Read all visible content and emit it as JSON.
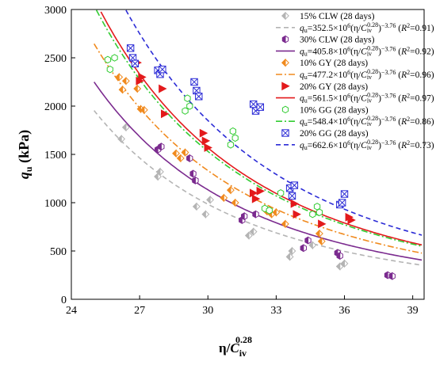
{
  "chart_data": {
    "type": "scatter",
    "title": "",
    "xlabel": {
      "main": "η/",
      "var": "C",
      "sub": "iv",
      "sup": "0.28"
    },
    "ylabel": {
      "main": "q",
      "sub": "u",
      "unit": " (kPa)"
    },
    "xlim": [
      24,
      39.5
    ],
    "ylim": [
      0,
      3000
    ],
    "xticks": [
      24,
      27,
      30,
      33,
      36,
      39
    ],
    "yticks": [
      0,
      500,
      1000,
      1500,
      2000,
      2500,
      3000
    ],
    "grid": false,
    "legend_position": "top-right",
    "series": [
      {
        "name": "15% CLW (28 days)",
        "marker": "diamond-half",
        "color": "#b4b4b4",
        "fit_label": {
          "coef": "352.5",
          "r2": "0.91"
        },
        "fit": {
          "a": 352500000,
          "b": -3.76,
          "x_start": 25
        },
        "fit_style": "dash",
        "points": [
          [
            26.2,
            1660
          ],
          [
            26.4,
            1780
          ],
          [
            27.8,
            1270
          ],
          [
            27.9,
            1320
          ],
          [
            29.5,
            960
          ],
          [
            29.9,
            880
          ],
          [
            30.1,
            1030
          ],
          [
            31.8,
            660
          ],
          [
            32.0,
            700
          ],
          [
            33.6,
            440
          ],
          [
            33.7,
            500
          ],
          [
            34.6,
            560
          ],
          [
            35.8,
            340
          ],
          [
            36.0,
            370
          ]
        ]
      },
      {
        "name": "30% CLW (28 days)",
        "marker": "hexagon-half",
        "color": "#7b2b8f",
        "fit_label": {
          "coef": "405.8",
          "r2": "0.92"
        },
        "fit": {
          "a": 405800000,
          "b": -3.76,
          "x_start": 25
        },
        "fit_style": "solid",
        "points": [
          [
            27.8,
            1550
          ],
          [
            27.95,
            1580
          ],
          [
            29.2,
            1460
          ],
          [
            29.35,
            1300
          ],
          [
            29.45,
            1230
          ],
          [
            31.5,
            820
          ],
          [
            31.6,
            860
          ],
          [
            32.1,
            880
          ],
          [
            34.2,
            530
          ],
          [
            34.4,
            610
          ],
          [
            35.7,
            480
          ],
          [
            35.8,
            450
          ],
          [
            37.9,
            250
          ],
          [
            38.1,
            240
          ]
        ]
      },
      {
        "name": "10% GY (28 days)",
        "marker": "diamond-half",
        "color": "#f08a1e",
        "fit_label": {
          "coef": "477.2",
          "r2": "0.96"
        },
        "fit": {
          "a": 477200000,
          "b": -3.76,
          "x_start": 25
        },
        "fit_style": "dashdot",
        "points": [
          [
            26.1,
            2300
          ],
          [
            26.25,
            2170
          ],
          [
            26.4,
            2260
          ],
          [
            26.9,
            2180
          ],
          [
            27.05,
            1970
          ],
          [
            27.2,
            1960
          ],
          [
            28.6,
            1510
          ],
          [
            28.8,
            1460
          ],
          [
            29.0,
            1520
          ],
          [
            30.7,
            1050
          ],
          [
            31.0,
            1130
          ],
          [
            31.2,
            1000
          ],
          [
            32.6,
            910
          ],
          [
            32.8,
            880
          ],
          [
            33.0,
            900
          ],
          [
            33.4,
            780
          ],
          [
            34.9,
            680
          ],
          [
            35.0,
            600
          ]
        ]
      },
      {
        "name": "20% GY (28 days)",
        "marker": "triangle-right",
        "color": "#e31a1c",
        "fit_label": {
          "coef": "561.5",
          "r2": "0.97"
        },
        "fit": {
          "a": 561500000,
          "b": -3.76,
          "x_start": 25
        },
        "fit_style": "solid",
        "points": [
          [
            26.9,
            2450
          ],
          [
            27.0,
            2260
          ],
          [
            27.1,
            2300
          ],
          [
            28.0,
            2180
          ],
          [
            28.1,
            1920
          ],
          [
            29.8,
            1720
          ],
          [
            29.9,
            1640
          ],
          [
            30.0,
            1570
          ],
          [
            32.0,
            1100
          ],
          [
            32.1,
            1040
          ],
          [
            32.3,
            1120
          ],
          [
            33.8,
            990
          ],
          [
            33.9,
            880
          ],
          [
            35.0,
            780
          ],
          [
            36.2,
            850
          ],
          [
            36.3,
            820
          ]
        ]
      },
      {
        "name": "10% GG (28 days)",
        "marker": "hexagon-open",
        "color": "#33cc33",
        "fit_label": {
          "coef": "548.4",
          "r2": "0.86"
        },
        "fit": {
          "a": 548400000,
          "b": -3.76,
          "x_start": 25
        },
        "fit_style": "dashdot",
        "points": [
          [
            25.6,
            2480
          ],
          [
            25.7,
            2380
          ],
          [
            25.9,
            2500
          ],
          [
            29.1,
            2080
          ],
          [
            29.2,
            2000
          ],
          [
            29.0,
            1950
          ],
          [
            31.1,
            1740
          ],
          [
            31.2,
            1670
          ],
          [
            31.0,
            1600
          ],
          [
            32.5,
            940
          ],
          [
            32.7,
            920
          ],
          [
            33.2,
            1100
          ],
          [
            34.6,
            880
          ],
          [
            34.8,
            960
          ],
          [
            34.9,
            900
          ]
        ]
      },
      {
        "name": "20% GG (28 days)",
        "marker": "box-x",
        "color": "#2b2bd6",
        "fit_label": {
          "coef": "662.6",
          "r2": "0.73"
        },
        "fit": {
          "a": 662600000,
          "b": -3.76,
          "x_start": 25.8
        },
        "fit_style": "dash",
        "points": [
          [
            26.6,
            2600
          ],
          [
            26.7,
            2500
          ],
          [
            26.8,
            2440
          ],
          [
            27.8,
            2370
          ],
          [
            27.9,
            2330
          ],
          [
            28.0,
            2380
          ],
          [
            29.4,
            2250
          ],
          [
            29.5,
            2160
          ],
          [
            29.6,
            2100
          ],
          [
            32.0,
            2020
          ],
          [
            32.1,
            1950
          ],
          [
            32.3,
            1990
          ],
          [
            33.6,
            1150
          ],
          [
            33.8,
            1180
          ],
          [
            33.7,
            1070
          ],
          [
            35.8,
            980
          ],
          [
            35.9,
            1000
          ],
          [
            36.0,
            1090
          ]
        ]
      }
    ]
  }
}
